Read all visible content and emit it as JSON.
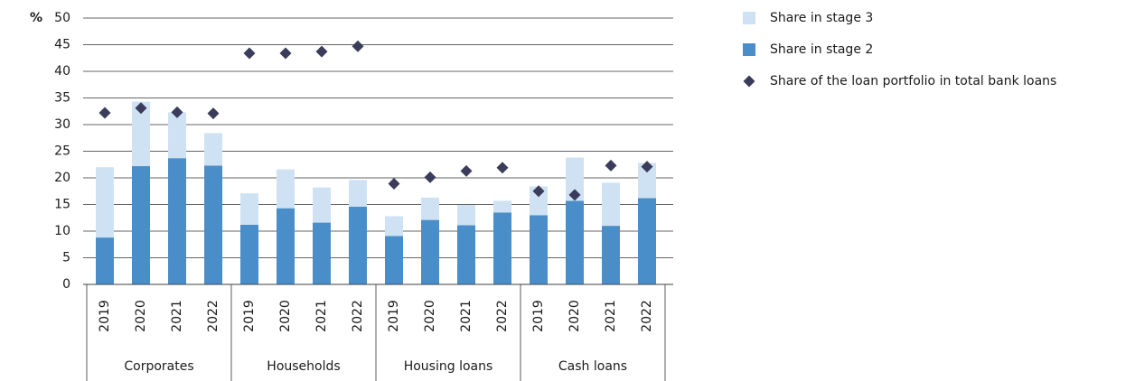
{
  "chart_data": {
    "type": "bar",
    "ylabel": "%",
    "groups": [
      "Corporates",
      "Households",
      "Housing loans",
      "Cash loans"
    ],
    "categories": [
      "2019",
      "2020",
      "2021",
      "2022",
      "2019",
      "2020",
      "2021",
      "2022",
      "2019",
      "2020",
      "2021",
      "2022",
      "2019",
      "2020",
      "2021",
      "2022"
    ],
    "series": [
      {
        "name": "Share in stage 3",
        "type": "bar",
        "color": "#cfe2f3",
        "values": [
          13.2,
          12.1,
          8.6,
          6.1,
          5.9,
          7.3,
          6.6,
          5.0,
          3.7,
          4.2,
          3.8,
          2.2,
          5.4,
          8.1,
          8.1,
          6.6
        ]
      },
      {
        "name": "Share in stage 2",
        "type": "bar",
        "color": "#4a8ec9",
        "values": [
          8.8,
          22.2,
          23.7,
          22.3,
          11.2,
          14.3,
          11.6,
          14.6,
          9.1,
          12.1,
          11.1,
          13.5,
          13.0,
          15.7,
          11.0,
          16.2
        ]
      },
      {
        "name": "Share of the loan portfolio in total bank loans",
        "type": "scatter",
        "marker": "diamond",
        "color": "#3b3b5c",
        "values": [
          32.2,
          33.1,
          32.3,
          32.1,
          43.4,
          43.4,
          43.7,
          44.7,
          18.9,
          20.1,
          21.3,
          21.9,
          17.5,
          16.8,
          22.3,
          22.1
        ]
      }
    ],
    "ylim": [
      0,
      50
    ],
    "yticks": [
      0,
      5,
      10,
      15,
      20,
      25,
      30,
      35,
      40,
      45,
      50
    ],
    "grid": true,
    "stacked": true
  }
}
